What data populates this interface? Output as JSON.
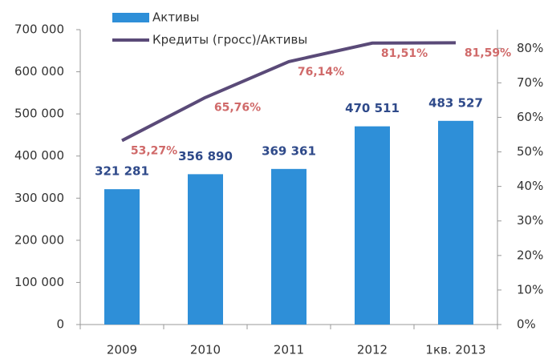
{
  "chart_data": {
    "type": "bar",
    "categories": [
      "2009",
      "2010",
      "2011",
      "2012",
      "1кв. 2013"
    ],
    "series": [
      {
        "name": "Активы",
        "type": "bar",
        "color": "#2e8fd8",
        "values": [
          321281,
          356890,
          369361,
          470511,
          483527
        ],
        "value_labels": [
          "321 281",
          "356 890",
          "369 361",
          "470 511",
          "483 527"
        ]
      },
      {
        "name": "Кредиты (гросс)/Активы",
        "type": "line",
        "axis": "y2",
        "color": "#5a4a78",
        "values": [
          53.27,
          65.76,
          76.14,
          81.51,
          81.59
        ],
        "value_labels": [
          "53,27%",
          "65,76%",
          "76,14%",
          "81,51%",
          "81,59%"
        ]
      }
    ],
    "ylim": [
      0,
      700000
    ],
    "yticks": [
      0,
      {
        "value": 100000,
        "label": "100 000"
      },
      {
        "value": 200000,
        "label": "200 000"
      },
      {
        "value": 300000,
        "label": "300 000"
      },
      {
        "value": 400000,
        "label": "400 000"
      },
      {
        "value": 500000,
        "label": "500 000"
      },
      {
        "value": 600000,
        "label": "600 000"
      },
      {
        "value": 700000,
        "label": "700 000"
      }
    ],
    "y2lim": [
      0,
      85.4
    ],
    "y2ticks": [
      {
        "value": 0,
        "label": "0%"
      },
      {
        "value": 10,
        "label": "10%"
      },
      {
        "value": 20,
        "label": "20%"
      },
      {
        "value": 30,
        "label": "30%"
      },
      {
        "value": 40,
        "label": "40%"
      },
      {
        "value": 50,
        "label": "50%"
      },
      {
        "value": 60,
        "label": "60%"
      },
      {
        "value": 70,
        "label": "70%"
      },
      {
        "value": 80,
        "label": "80%"
      }
    ],
    "grid": false,
    "legend": "top-left"
  }
}
